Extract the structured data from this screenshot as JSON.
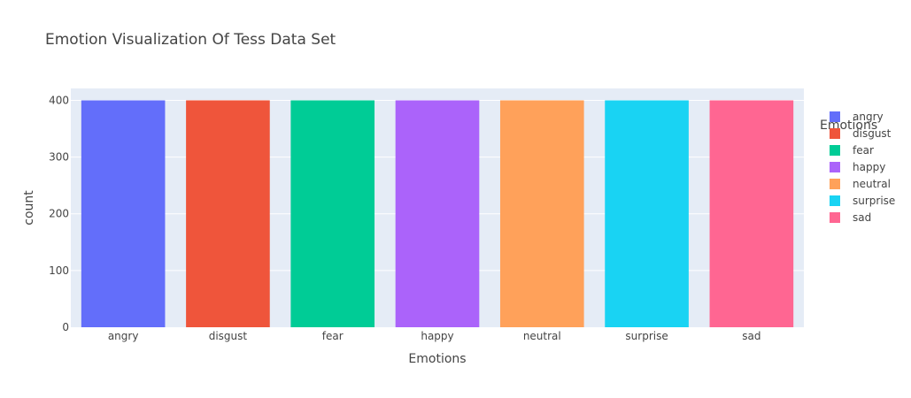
{
  "chart_data": {
    "type": "bar",
    "title": "Emotion Visualization Of Tess Data Set",
    "xlabel": "Emotions",
    "ylabel": "count",
    "categories": [
      "angry",
      "disgust",
      "fear",
      "happy",
      "neutral",
      "surprise",
      "sad"
    ],
    "values": [
      400,
      400,
      400,
      400,
      400,
      400,
      400
    ],
    "colors": [
      "#636efa",
      "#EF553B",
      "#00cc96",
      "#ab63fa",
      "#FFA15A",
      "#19d3f3",
      "#FF6692"
    ],
    "yticks": [
      "0",
      "100",
      "200",
      "300",
      "400"
    ],
    "ylim": [
      0,
      421
    ],
    "grid": true,
    "legend": {
      "title": "Emotions",
      "placement": "right",
      "entries": [
        "angry",
        "disgust",
        "fear",
        "happy",
        "neutral",
        "surprise",
        "sad"
      ]
    }
  }
}
